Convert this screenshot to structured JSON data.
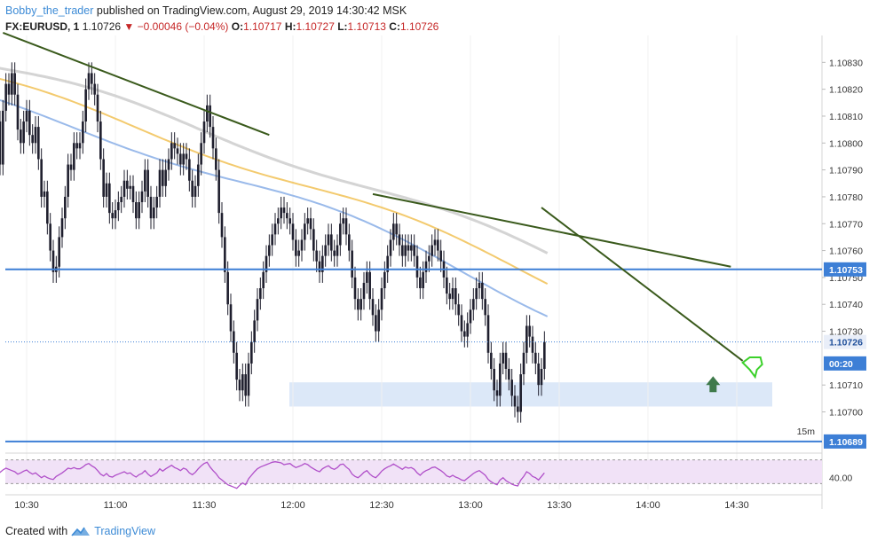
{
  "header": {
    "author": "Bobby_the_trader",
    "published_text": " published on TradingView.com, August 29, 2019 14:30:42 MSK"
  },
  "symbol": {
    "name": "FX:EURUSD, 1",
    "last": "1.10726",
    "change": "▼ −0.00046 (−0.04%)",
    "open_label": "O:",
    "open": "1.10717",
    "high_label": "H:",
    "high": "1.10727",
    "low_label": "L:",
    "low": "1.10713",
    "close_label": "C:",
    "close": "1.10726"
  },
  "footer": {
    "created_with": "Created with",
    "brand": "TradingView"
  },
  "colors": {
    "candle": "#1f1f2e",
    "ema_grey": "#cfcfcf",
    "ema_yellow": "#f2c45e",
    "ema_blue": "#8fb3e8",
    "trendline": "#3a5a1c",
    "hline": "#3d7fd6",
    "zone": "#d6e4f7",
    "rsi_line": "#b04fc9",
    "rsi_band": "#f1e2f7",
    "accent": "#3d8bd6"
  },
  "chart_data": {
    "type": "line",
    "symbol": "FX:EURUSD",
    "timeframe": "1",
    "x_tick_labels": [
      "10:30",
      "11:00",
      "11:30",
      "12:00",
      "12:30",
      "13:00",
      "13:30",
      "14:00",
      "14:30"
    ],
    "y_tick_labels": [
      "1.10830",
      "1.10820",
      "1.10810",
      "1.10800",
      "1.10790",
      "1.10780",
      "1.10770",
      "1.10760",
      "1.10750",
      "1.10740",
      "1.10730",
      "1.10710",
      "1.10700"
    ],
    "ylim": [
      1.10685,
      1.1084
    ],
    "price_tags": [
      {
        "label": "1.10753",
        "value": 1.10753,
        "kind": "level"
      },
      {
        "label": "1.10726",
        "value": 1.10726,
        "kind": "last"
      },
      {
        "label": "00:20",
        "value": 1.1072,
        "kind": "countdown"
      },
      {
        "label": "1.10689",
        "value": 1.10689,
        "kind": "level"
      }
    ],
    "timeframe_label": "15m",
    "horizontal_lines": [
      1.10753,
      1.10689
    ],
    "support_zone": {
      "from_time": "12:00",
      "to_time": "14:50",
      "low": 1.10702,
      "high": 1.10711
    },
    "close_series": {
      "start_time": "10:20",
      "step_minutes": 1,
      "values": [
        1.10808,
        1.10792,
        1.10812,
        1.10822,
        1.10818,
        1.10826,
        1.10818,
        1.10805,
        1.108,
        1.10808,
        1.10812,
        1.10803,
        1.108,
        1.10806,
        1.10794,
        1.1078,
        1.10782,
        1.1077,
        1.1076,
        1.10752,
        1.10754,
        1.10765,
        1.10772,
        1.1078,
        1.10792,
        1.1079,
        1.108,
        1.10798,
        1.108,
        1.10808,
        1.1082,
        1.10826,
        1.10822,
        1.10818,
        1.10808,
        1.10794,
        1.1078,
        1.10785,
        1.10774,
        1.10772,
        1.10775,
        1.10778,
        1.1078,
        1.10786,
        1.10783,
        1.10784,
        1.10778,
        1.10772,
        1.10778,
        1.10782,
        1.1079,
        1.1078,
        1.10772,
        1.10776,
        1.1078,
        1.1079,
        1.10784,
        1.1079,
        1.10794,
        1.108,
        1.10798,
        1.10796,
        1.10792,
        1.10796,
        1.10794,
        1.10786,
        1.1078,
        1.10784,
        1.10792,
        1.108,
        1.10808,
        1.10814,
        1.10806,
        1.10798,
        1.1079,
        1.10774,
        1.10765,
        1.10752,
        1.1074,
        1.1073,
        1.10722,
        1.10712,
        1.10708,
        1.10714,
        1.10706,
        1.10718,
        1.10726,
        1.10734,
        1.10742,
        1.10746,
        1.10752,
        1.10758,
        1.10762,
        1.10766,
        1.1077,
        1.10772,
        1.10776,
        1.10774,
        1.10772,
        1.1077,
        1.10764,
        1.10758,
        1.1076,
        1.10764,
        1.1077,
        1.10772,
        1.10768,
        1.1076,
        1.10756,
        1.10752,
        1.10758,
        1.10762,
        1.10766,
        1.1076,
        1.10758,
        1.10762,
        1.1077,
        1.10772,
        1.10766,
        1.1076,
        1.1075,
        1.10742,
        1.10738,
        1.10742,
        1.10748,
        1.10752,
        1.10742,
        1.10736,
        1.1073,
        1.10738,
        1.10746,
        1.10752,
        1.10758,
        1.10764,
        1.1077,
        1.10766,
        1.10762,
        1.10758,
        1.10762,
        1.1076,
        1.10762,
        1.10758,
        1.1075,
        1.10746,
        1.10752,
        1.10756,
        1.10758,
        1.10762,
        1.10764,
        1.1076,
        1.10756,
        1.1075,
        1.10744,
        1.10742,
        1.10746,
        1.1074,
        1.10736,
        1.1073,
        1.10728,
        1.10733,
        1.10738,
        1.10742,
        1.10746,
        1.10748,
        1.10742,
        1.10736,
        1.10722,
        1.10716,
        1.10708,
        1.10706,
        1.10718,
        1.10722,
        1.10716,
        1.10712,
        1.10706,
        1.10702,
        1.107,
        1.10714,
        1.10722,
        1.10732,
        1.10728,
        1.10722,
        1.10718,
        1.1071,
        1.10716,
        1.10726
      ]
    },
    "ema_series": [
      {
        "start": 1.10828,
        "end": 1.10758
      },
      {
        "start": 1.10822,
        "end": 1.10749
      },
      {
        "start": 1.10814,
        "end": 1.10738
      }
    ],
    "trendlines": [
      {
        "from": [
          "10:22",
          1.10841
        ],
        "to": [
          "11:52",
          1.10803
        ]
      },
      {
        "from": [
          "12:27",
          1.10781
        ],
        "to": [
          "14:28",
          1.10754
        ]
      },
      {
        "from": [
          "13:24",
          1.10776
        ],
        "to": [
          "14:32",
          1.10719
        ]
      }
    ],
    "rsi": {
      "tick_labels": [
        "40.00"
      ],
      "band": [
        30,
        70
      ],
      "ylim": [
        20,
        80
      ],
      "values": [
        52,
        49,
        53,
        56,
        54,
        52,
        50,
        46,
        48,
        51,
        53,
        49,
        46,
        48,
        44,
        40,
        43,
        40,
        38,
        37,
        42,
        45,
        48,
        52,
        56,
        55,
        57,
        55,
        55,
        58,
        62,
        64,
        60,
        57,
        52,
        46,
        43,
        47,
        42,
        41,
        44,
        46,
        48,
        50,
        47,
        48,
        44,
        41,
        45,
        47,
        52,
        46,
        42,
        45,
        48,
        55,
        51,
        55,
        58,
        61,
        57,
        55,
        52,
        56,
        54,
        48,
        45,
        49,
        55,
        60,
        64,
        66,
        58,
        52,
        47,
        40,
        36,
        32,
        28,
        26,
        24,
        22,
        27,
        31,
        28,
        38,
        44,
        50,
        55,
        58,
        60,
        62,
        64,
        66,
        67,
        66,
        65,
        62,
        63,
        64,
        60,
        57,
        59,
        61,
        64,
        62,
        58,
        55,
        52,
        50,
        55,
        58,
        60,
        56,
        54,
        57,
        62,
        63,
        58,
        54,
        46,
        42,
        40,
        44,
        49,
        52,
        46,
        42,
        40,
        45,
        51,
        55,
        58,
        60,
        63,
        60,
        57,
        54,
        58,
        56,
        57,
        54,
        48,
        44,
        49,
        52,
        54,
        57,
        58,
        55,
        52,
        48,
        43,
        41,
        44,
        41,
        39,
        36,
        35,
        39,
        43,
        47,
        50,
        52,
        48,
        44,
        37,
        33,
        30,
        28,
        36,
        40,
        35,
        32,
        29,
        27,
        26,
        36,
        42,
        50,
        47,
        42,
        40,
        36,
        42,
        48
      ]
    }
  }
}
